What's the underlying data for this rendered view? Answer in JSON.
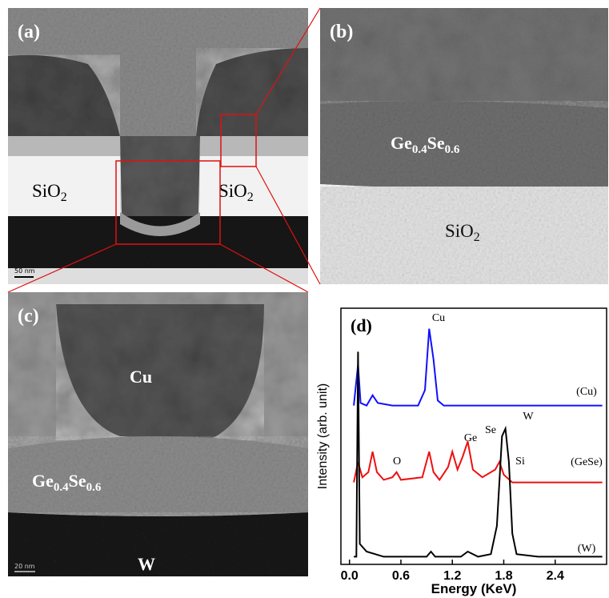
{
  "panels": {
    "a": {
      "label": "(a)",
      "region_left": [
        "SiO",
        "2"
      ],
      "region_right": [
        "SiO",
        "2"
      ],
      "scale_bar": "50 nm"
    },
    "b": {
      "label": "(b)",
      "film": [
        "Ge",
        "0.4",
        "Se",
        "0.6"
      ],
      "substrate": [
        "SiO",
        "2"
      ]
    },
    "c": {
      "label": "(c)",
      "top": "Cu",
      "film": [
        "Ge",
        "0.4",
        "Se",
        "0.6"
      ],
      "bottom": "W",
      "scale_bar": "20 nm"
    }
  },
  "chart_data": {
    "type": "line",
    "panel_label": "(d)",
    "x_label": "Energy (KeV)",
    "y_label": "Intensity (arb. unit)",
    "xlim": [
      -0.1,
      3.0
    ],
    "ylim": [
      0,
      100
    ],
    "xticks": [
      {
        "value": 0,
        "label": "0.0"
      },
      {
        "value": 0.6,
        "label": "0.6"
      },
      {
        "value": 1.2,
        "label": "1.2"
      },
      {
        "value": 1.8,
        "label": "1.8"
      },
      {
        "value": 2.4,
        "label": "2.4"
      }
    ],
    "annotations": [
      "Cu",
      "Ge",
      "Se",
      "O",
      "W",
      "Si"
    ],
    "series": [
      {
        "name": "(Cu)",
        "color": "#1010ff",
        "x": [
          0.05,
          0.1,
          0.13,
          0.2,
          0.27,
          0.33,
          0.5,
          0.8,
          0.88,
          0.93,
          0.98,
          1.03,
          1.1,
          1.5,
          2.0,
          2.5,
          2.95
        ],
        "values": [
          62,
          78,
          63,
          62,
          66,
          63,
          62,
          62,
          68,
          92,
          80,
          64,
          62,
          62,
          62,
          62,
          62
        ]
      },
      {
        "name": "(GeSe)",
        "color": "#ee1010",
        "x": [
          0.05,
          0.1,
          0.15,
          0.22,
          0.27,
          0.32,
          0.4,
          0.5,
          0.55,
          0.6,
          0.85,
          0.93,
          0.98,
          1.05,
          1.15,
          1.2,
          1.26,
          1.32,
          1.38,
          1.44,
          1.55,
          1.7,
          1.75,
          1.8,
          1.9,
          2.2,
          2.5,
          2.95
        ],
        "values": [
          32,
          40,
          34,
          36,
          44,
          36,
          33,
          34,
          36,
          33,
          34,
          44,
          36,
          33,
          38,
          44,
          37,
          42,
          48,
          37,
          34,
          37,
          40,
          35,
          32,
          32,
          32,
          32
        ]
      },
      {
        "name": "(W)",
        "color": "#000000",
        "x": [
          0.05,
          0.08,
          0.1,
          0.12,
          0.2,
          0.4,
          0.6,
          0.9,
          0.95,
          1.0,
          1.3,
          1.38,
          1.5,
          1.65,
          1.72,
          1.78,
          1.82,
          1.86,
          1.9,
          1.95,
          2.2,
          2.5,
          2.95
        ],
        "values": [
          3,
          3,
          83,
          8,
          5,
          3,
          3,
          3,
          5,
          3,
          3,
          5,
          3,
          4,
          15,
          50,
          53,
          40,
          12,
          4,
          3,
          3,
          3
        ]
      }
    ]
  }
}
